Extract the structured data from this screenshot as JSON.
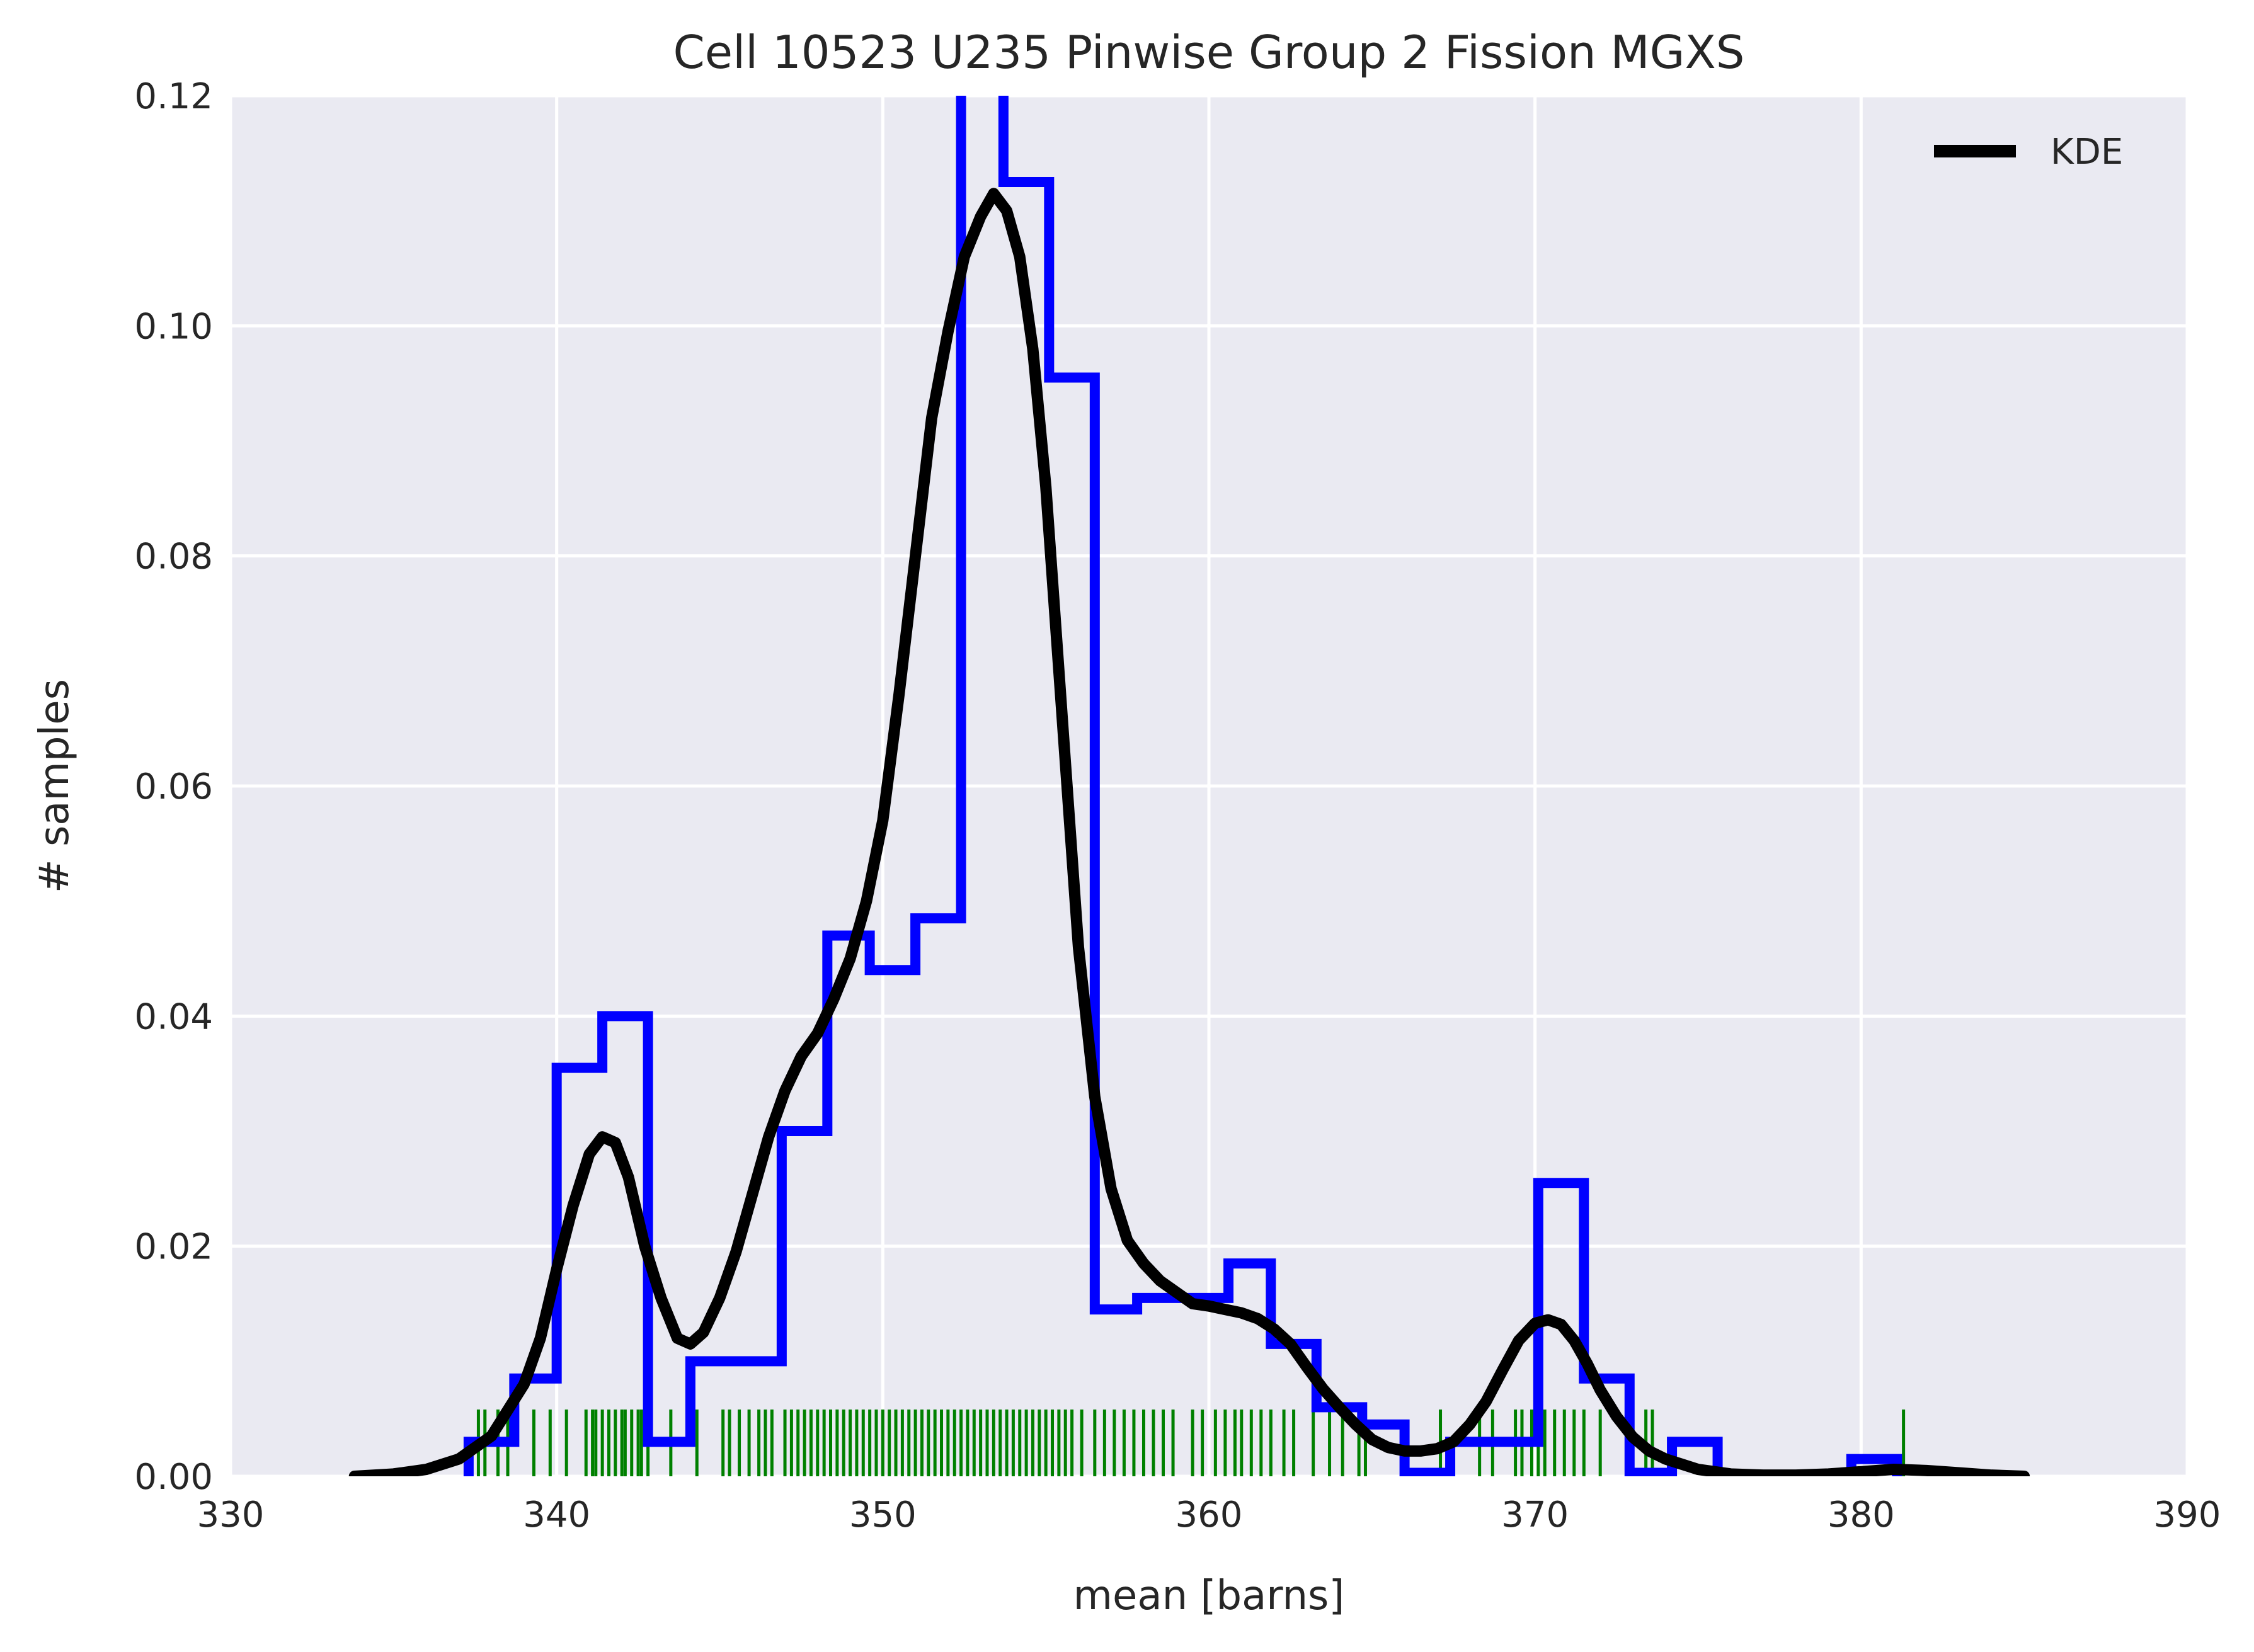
{
  "chart_data": {
    "type": "histogram",
    "title": "Cell 10523 U235 Pinwise Group 2 Fission MGXS",
    "xlabel": "mean [barns]",
    "ylabel": "# samples",
    "xlim": [
      330,
      390
    ],
    "ylim": [
      0,
      0.12
    ],
    "xticks": [
      "330",
      "340",
      "350",
      "360",
      "370",
      "380",
      "390"
    ],
    "yticks": [
      "0.00",
      "0.02",
      "0.04",
      "0.06",
      "0.08",
      "0.10",
      "0.12"
    ],
    "grid": true,
    "legend": {
      "placement": "top-right",
      "entries": [
        "KDE"
      ]
    },
    "colors": {
      "histogram": "#0000ff",
      "kde": "#000000",
      "rug": "#008000",
      "background": "#eaeaf2",
      "grid": "#ffffff"
    },
    "histogram": {
      "bin_edges": [
        337.3,
        338.7,
        340.0,
        341.4,
        342.8,
        344.1,
        345.5,
        346.9,
        348.3,
        349.6,
        351.0,
        352.4,
        353.7,
        355.1,
        356.5,
        357.8,
        359.2,
        360.6,
        361.9,
        363.3,
        364.7,
        366.0,
        367.4,
        368.8,
        370.1,
        371.5,
        372.9,
        374.2,
        375.6,
        377.0,
        378.4,
        379.7,
        381.1
      ],
      "densities": [
        0.003,
        0.0085,
        0.0355,
        0.04,
        0.003,
        0.01,
        0.01,
        0.03,
        0.047,
        0.044,
        0.0485,
        0.13,
        0.1125,
        0.0955,
        0.0145,
        0.0155,
        0.0155,
        0.0185,
        0.0115,
        0.006,
        0.0045,
        0.0003,
        0.003,
        0.003,
        0.0255,
        0.0085,
        0.0003,
        0.003,
        0.0,
        0.0,
        0.0,
        0.0015
      ]
    },
    "kde": {
      "x": [
        333.8,
        335.0,
        336.0,
        337.0,
        338.0,
        339.0,
        339.5,
        340.0,
        340.5,
        341.0,
        341.4,
        341.8,
        342.2,
        342.7,
        343.2,
        343.7,
        344.1,
        344.5,
        345.0,
        345.5,
        346.0,
        346.5,
        347.0,
        347.5,
        348.0,
        348.5,
        349.0,
        349.5,
        350.0,
        350.5,
        351.0,
        351.5,
        352.0,
        352.5,
        353.0,
        353.4,
        353.8,
        354.2,
        354.6,
        355.0,
        355.5,
        356.0,
        356.5,
        357.0,
        357.5,
        358.0,
        358.5,
        359.0,
        359.5,
        360.0,
        360.5,
        361.0,
        361.5,
        362.0,
        362.5,
        363.0,
        363.5,
        364.0,
        364.5,
        365.0,
        365.5,
        366.0,
        366.5,
        367.0,
        367.5,
        368.0,
        368.5,
        369.0,
        369.5,
        370.0,
        370.4,
        370.8,
        371.2,
        371.6,
        372.0,
        372.5,
        373.0,
        373.5,
        374.0,
        375.0,
        376.0,
        377.0,
        378.0,
        379.0,
        380.0,
        381.0,
        382.0,
        383.0,
        384.0,
        385.0
      ],
      "y": [
        0.0,
        0.0002,
        0.0006,
        0.0015,
        0.0035,
        0.008,
        0.012,
        0.018,
        0.0235,
        0.028,
        0.0295,
        0.029,
        0.026,
        0.02,
        0.0155,
        0.012,
        0.0115,
        0.0125,
        0.0155,
        0.0195,
        0.0245,
        0.0295,
        0.0335,
        0.0365,
        0.0385,
        0.0415,
        0.045,
        0.05,
        0.057,
        0.068,
        0.08,
        0.092,
        0.0995,
        0.106,
        0.1095,
        0.1115,
        0.11,
        0.106,
        0.098,
        0.086,
        0.066,
        0.046,
        0.033,
        0.025,
        0.0205,
        0.0185,
        0.017,
        0.016,
        0.015,
        0.0148,
        0.0145,
        0.0142,
        0.0137,
        0.0128,
        0.0115,
        0.0095,
        0.0076,
        0.006,
        0.0045,
        0.0032,
        0.0025,
        0.0022,
        0.0022,
        0.0024,
        0.003,
        0.0045,
        0.0065,
        0.0092,
        0.0118,
        0.0133,
        0.0136,
        0.0132,
        0.0118,
        0.0098,
        0.0075,
        0.0052,
        0.0034,
        0.0022,
        0.0015,
        0.0006,
        0.0002,
        0.0001,
        0.0001,
        0.0002,
        0.0004,
        0.0006,
        0.0005,
        0.0003,
        0.0001,
        0.0
      ]
    },
    "rug": [
      337.6,
      337.8,
      338.2,
      338.5,
      339.3,
      339.8,
      340.3,
      340.9,
      341.1,
      341.2,
      341.4,
      341.6,
      341.8,
      342.0,
      342.1,
      342.3,
      342.5,
      342.6,
      342.8,
      343.5,
      344.3,
      345.1,
      345.3,
      345.6,
      345.9,
      346.2,
      346.4,
      346.6,
      347.0,
      347.2,
      347.4,
      347.6,
      347.8,
      348.0,
      348.2,
      348.4,
      348.6,
      348.8,
      349.0,
      349.2,
      349.4,
      349.6,
      349.8,
      350.0,
      350.2,
      350.4,
      350.6,
      350.8,
      351.0,
      351.2,
      351.4,
      351.6,
      351.8,
      352.0,
      352.2,
      352.4,
      352.6,
      352.8,
      353.0,
      353.2,
      353.4,
      353.6,
      353.8,
      354.0,
      354.2,
      354.4,
      354.6,
      354.8,
      355.0,
      355.2,
      355.4,
      355.6,
      355.8,
      356.1,
      356.5,
      356.8,
      357.1,
      357.4,
      357.7,
      358.0,
      358.3,
      358.6,
      358.9,
      359.5,
      359.8,
      360.2,
      360.5,
      360.8,
      361.0,
      361.3,
      361.6,
      361.9,
      362.3,
      362.6,
      363.2,
      363.7,
      364.1,
      364.6,
      364.8,
      367.1,
      368.3,
      368.7,
      369.4,
      369.6,
      369.9,
      370.1,
      370.3,
      370.6,
      370.9,
      371.2,
      371.5,
      372.0,
      373.4,
      373.6,
      381.3
    ]
  }
}
